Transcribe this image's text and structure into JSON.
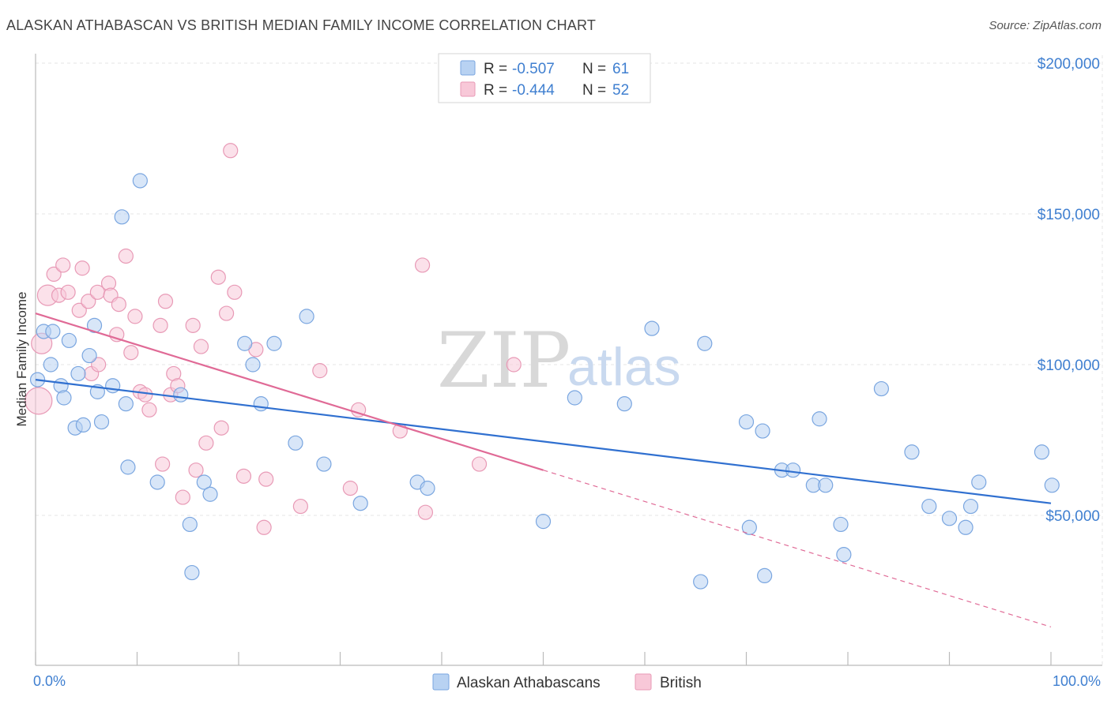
{
  "title": "ALASKAN ATHABASCAN VS BRITISH MEDIAN FAMILY INCOME CORRELATION CHART",
  "source": "Source: ZipAtlas.com",
  "watermark": {
    "zip": "ZIP",
    "atlas": "atlas"
  },
  "colors": {
    "blue": "#3f7fd0",
    "blue_fill": "#b8d2f2",
    "pink": "#e0709a",
    "pink_fill": "#f8c8d8"
  },
  "legend": {
    "rows": [
      {
        "r_label": "R = ",
        "r_value": "-0.507",
        "n_label": "N = ",
        "n_value": "61"
      },
      {
        "r_label": "R = ",
        "r_value": "-0.444",
        "n_label": "N = ",
        "n_value": "52"
      }
    ]
  },
  "chart_data": {
    "type": "scatter",
    "title": "ALASKAN ATHABASCAN VS BRITISH MEDIAN FAMILY INCOME CORRELATION CHART",
    "xlabel": "",
    "ylabel": "Median Family Income",
    "xlim": [
      0,
      100
    ],
    "ylim": [
      0,
      210000
    ],
    "x_tick_labels": [
      "0.0%",
      "100.0%"
    ],
    "y_ticks": [
      50000,
      100000,
      150000,
      200000
    ],
    "y_tick_labels": [
      "$50,000",
      "$100,000",
      "$150,000",
      "$200,000"
    ],
    "grid": true,
    "legend_position": "top-center",
    "series": [
      {
        "name": "Alaskan Athabascans",
        "color": "#3f7fd0",
        "points": [
          [
            0.2,
            95000
          ],
          [
            0.8,
            111000
          ],
          [
            1.5,
            100000
          ],
          [
            1.7,
            111000
          ],
          [
            2.5,
            93000
          ],
          [
            2.8,
            89000
          ],
          [
            3.3,
            108000
          ],
          [
            3.9,
            79000
          ],
          [
            4.2,
            97000
          ],
          [
            4.7,
            80000
          ],
          [
            5.3,
            103000
          ],
          [
            5.8,
            113000
          ],
          [
            6.1,
            91000
          ],
          [
            6.5,
            81000
          ],
          [
            7.6,
            93000
          ],
          [
            8.5,
            149000
          ],
          [
            8.9,
            87000
          ],
          [
            9.1,
            66000
          ],
          [
            10.3,
            161000
          ],
          [
            12.0,
            61000
          ],
          [
            14.3,
            90000
          ],
          [
            15.2,
            47000
          ],
          [
            15.4,
            31000
          ],
          [
            16.6,
            61000
          ],
          [
            17.2,
            57000
          ],
          [
            20.6,
            107000
          ],
          [
            21.4,
            100000
          ],
          [
            22.2,
            87000
          ],
          [
            23.5,
            107000
          ],
          [
            25.6,
            74000
          ],
          [
            26.7,
            116000
          ],
          [
            28.4,
            67000
          ],
          [
            32.0,
            54000
          ],
          [
            37.6,
            61000
          ],
          [
            38.6,
            59000
          ],
          [
            50.0,
            48000
          ],
          [
            53.1,
            89000
          ],
          [
            58.0,
            87000
          ],
          [
            60.7,
            112000
          ],
          [
            65.5,
            28000
          ],
          [
            65.9,
            107000
          ],
          [
            70.0,
            81000
          ],
          [
            70.3,
            46000
          ],
          [
            71.6,
            78000
          ],
          [
            71.8,
            30000
          ],
          [
            73.5,
            65000
          ],
          [
            74.6,
            65000
          ],
          [
            76.6,
            60000
          ],
          [
            77.2,
            82000
          ],
          [
            77.8,
            60000
          ],
          [
            79.3,
            47000
          ],
          [
            79.6,
            37000
          ],
          [
            83.3,
            92000
          ],
          [
            86.3,
            71000
          ],
          [
            88.0,
            53000
          ],
          [
            90.0,
            49000
          ],
          [
            92.1,
            53000
          ],
          [
            92.9,
            61000
          ],
          [
            91.6,
            46000
          ],
          [
            99.1,
            71000
          ],
          [
            100.1,
            60000
          ]
        ]
      },
      {
        "name": "British",
        "color": "#e0709a",
        "points": [
          [
            0.3,
            88000
          ],
          [
            0.6,
            107000
          ],
          [
            1.2,
            123000
          ],
          [
            1.8,
            130000
          ],
          [
            2.3,
            123000
          ],
          [
            2.7,
            133000
          ],
          [
            3.2,
            124000
          ],
          [
            4.3,
            118000
          ],
          [
            4.6,
            132000
          ],
          [
            5.2,
            121000
          ],
          [
            5.5,
            97000
          ],
          [
            6.1,
            124000
          ],
          [
            6.2,
            100000
          ],
          [
            7.2,
            127000
          ],
          [
            7.4,
            123000
          ],
          [
            8.2,
            120000
          ],
          [
            8.0,
            110000
          ],
          [
            8.9,
            136000
          ],
          [
            9.4,
            104000
          ],
          [
            9.8,
            116000
          ],
          [
            10.3,
            91000
          ],
          [
            10.8,
            90000
          ],
          [
            11.2,
            85000
          ],
          [
            12.3,
            113000
          ],
          [
            12.5,
            67000
          ],
          [
            12.8,
            121000
          ],
          [
            13.3,
            90000
          ],
          [
            13.6,
            97000
          ],
          [
            14.0,
            93000
          ],
          [
            14.5,
            56000
          ],
          [
            15.5,
            113000
          ],
          [
            15.8,
            65000
          ],
          [
            16.3,
            106000
          ],
          [
            16.8,
            74000
          ],
          [
            18.0,
            129000
          ],
          [
            18.3,
            79000
          ],
          [
            18.8,
            117000
          ],
          [
            19.2,
            171000
          ],
          [
            19.6,
            124000
          ],
          [
            20.5,
            63000
          ],
          [
            21.7,
            105000
          ],
          [
            22.7,
            62000
          ],
          [
            22.5,
            46000
          ],
          [
            26.1,
            53000
          ],
          [
            28.0,
            98000
          ],
          [
            31.0,
            59000
          ],
          [
            31.8,
            85000
          ],
          [
            35.9,
            78000
          ],
          [
            38.4,
            51000
          ],
          [
            38.1,
            133000
          ],
          [
            43.7,
            67000
          ],
          [
            47.1,
            100000
          ]
        ]
      }
    ],
    "trendlines": [
      {
        "series": "Alaskan Athabascans",
        "from": [
          0,
          95000
        ],
        "to": [
          100,
          54000
        ]
      },
      {
        "series": "British",
        "from": [
          0,
          117000
        ],
        "to": [
          50,
          65000
        ],
        "dashed_to": [
          100,
          13000
        ]
      }
    ]
  }
}
